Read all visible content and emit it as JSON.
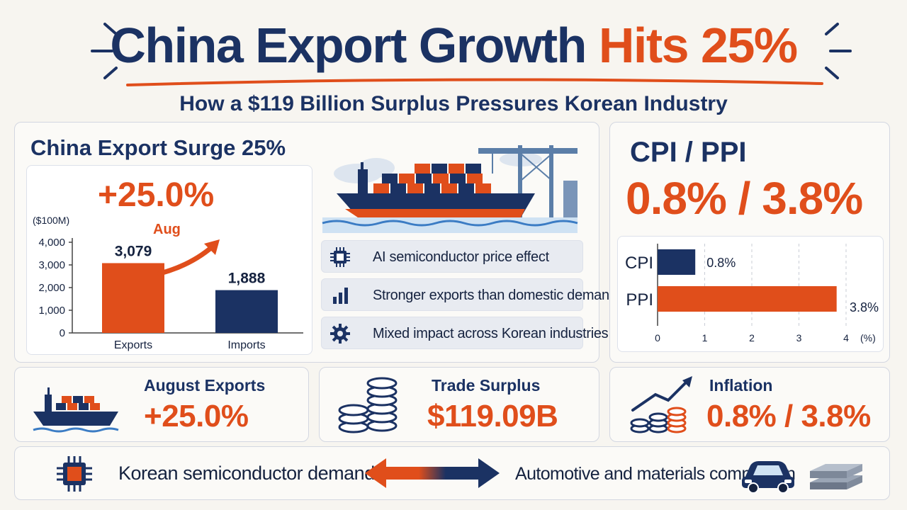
{
  "header": {
    "title_part1": "China Export Growth",
    "title_part2": "Hits 25%",
    "subtitle": "How a $119 Billion Surplus Pressures Korean Industry"
  },
  "export_panel": {
    "heading": "China Export Surge 25%",
    "big_value": "+25.0%",
    "arrow_label": "Aug",
    "features": [
      {
        "icon": "chip-icon",
        "text": "AI semiconductor price effect"
      },
      {
        "icon": "bar-chart-icon",
        "text": "Stronger exports than domestic demand"
      },
      {
        "icon": "gear-icon",
        "text": "Mixed impact across Korean industries"
      }
    ]
  },
  "cpi_panel": {
    "heading": "CPI / PPI",
    "big_value": "0.8% / 3.8%"
  },
  "stats": {
    "exports": {
      "label": "August Exports",
      "value": "+25.0%"
    },
    "surplus": {
      "label": "Trade Surplus",
      "value": "$119.09B"
    },
    "inflation": {
      "label": "Inflation",
      "value": "0.8% / 3.8%"
    }
  },
  "bottom": {
    "left": "Korean semiconductor demand",
    "right": "Automotive and materials competition"
  },
  "colors": {
    "navy": "#1b3263",
    "orange": "#e04e1b",
    "background": "#f7f5f0"
  },
  "chart_data": [
    {
      "type": "bar",
      "ylabel": "($100M)",
      "categories": [
        "Exports",
        "Imports"
      ],
      "values": [
        3079,
        1888
      ],
      "value_labels": [
        "3,079",
        "1,888"
      ],
      "bar_colors": [
        "#e04e1b",
        "#1b3263"
      ],
      "ylim": [
        0,
        4000
      ],
      "yticks": [
        0,
        1000,
        2000,
        3000,
        4000
      ],
      "ytick_labels": [
        "0",
        "1,000",
        "2,000",
        "3,000",
        "4,000"
      ],
      "grid": false
    },
    {
      "type": "bar",
      "orientation": "horizontal",
      "categories": [
        "CPI",
        "PPI"
      ],
      "values": [
        0.8,
        3.8
      ],
      "value_labels": [
        "0.8%",
        "3.8%"
      ],
      "bar_colors": [
        "#1b3263",
        "#e04e1b"
      ],
      "xlim": [
        0,
        4
      ],
      "xticks": [
        0,
        1,
        2,
        3,
        4
      ],
      "xlabel": "(%)",
      "grid": true
    }
  ]
}
